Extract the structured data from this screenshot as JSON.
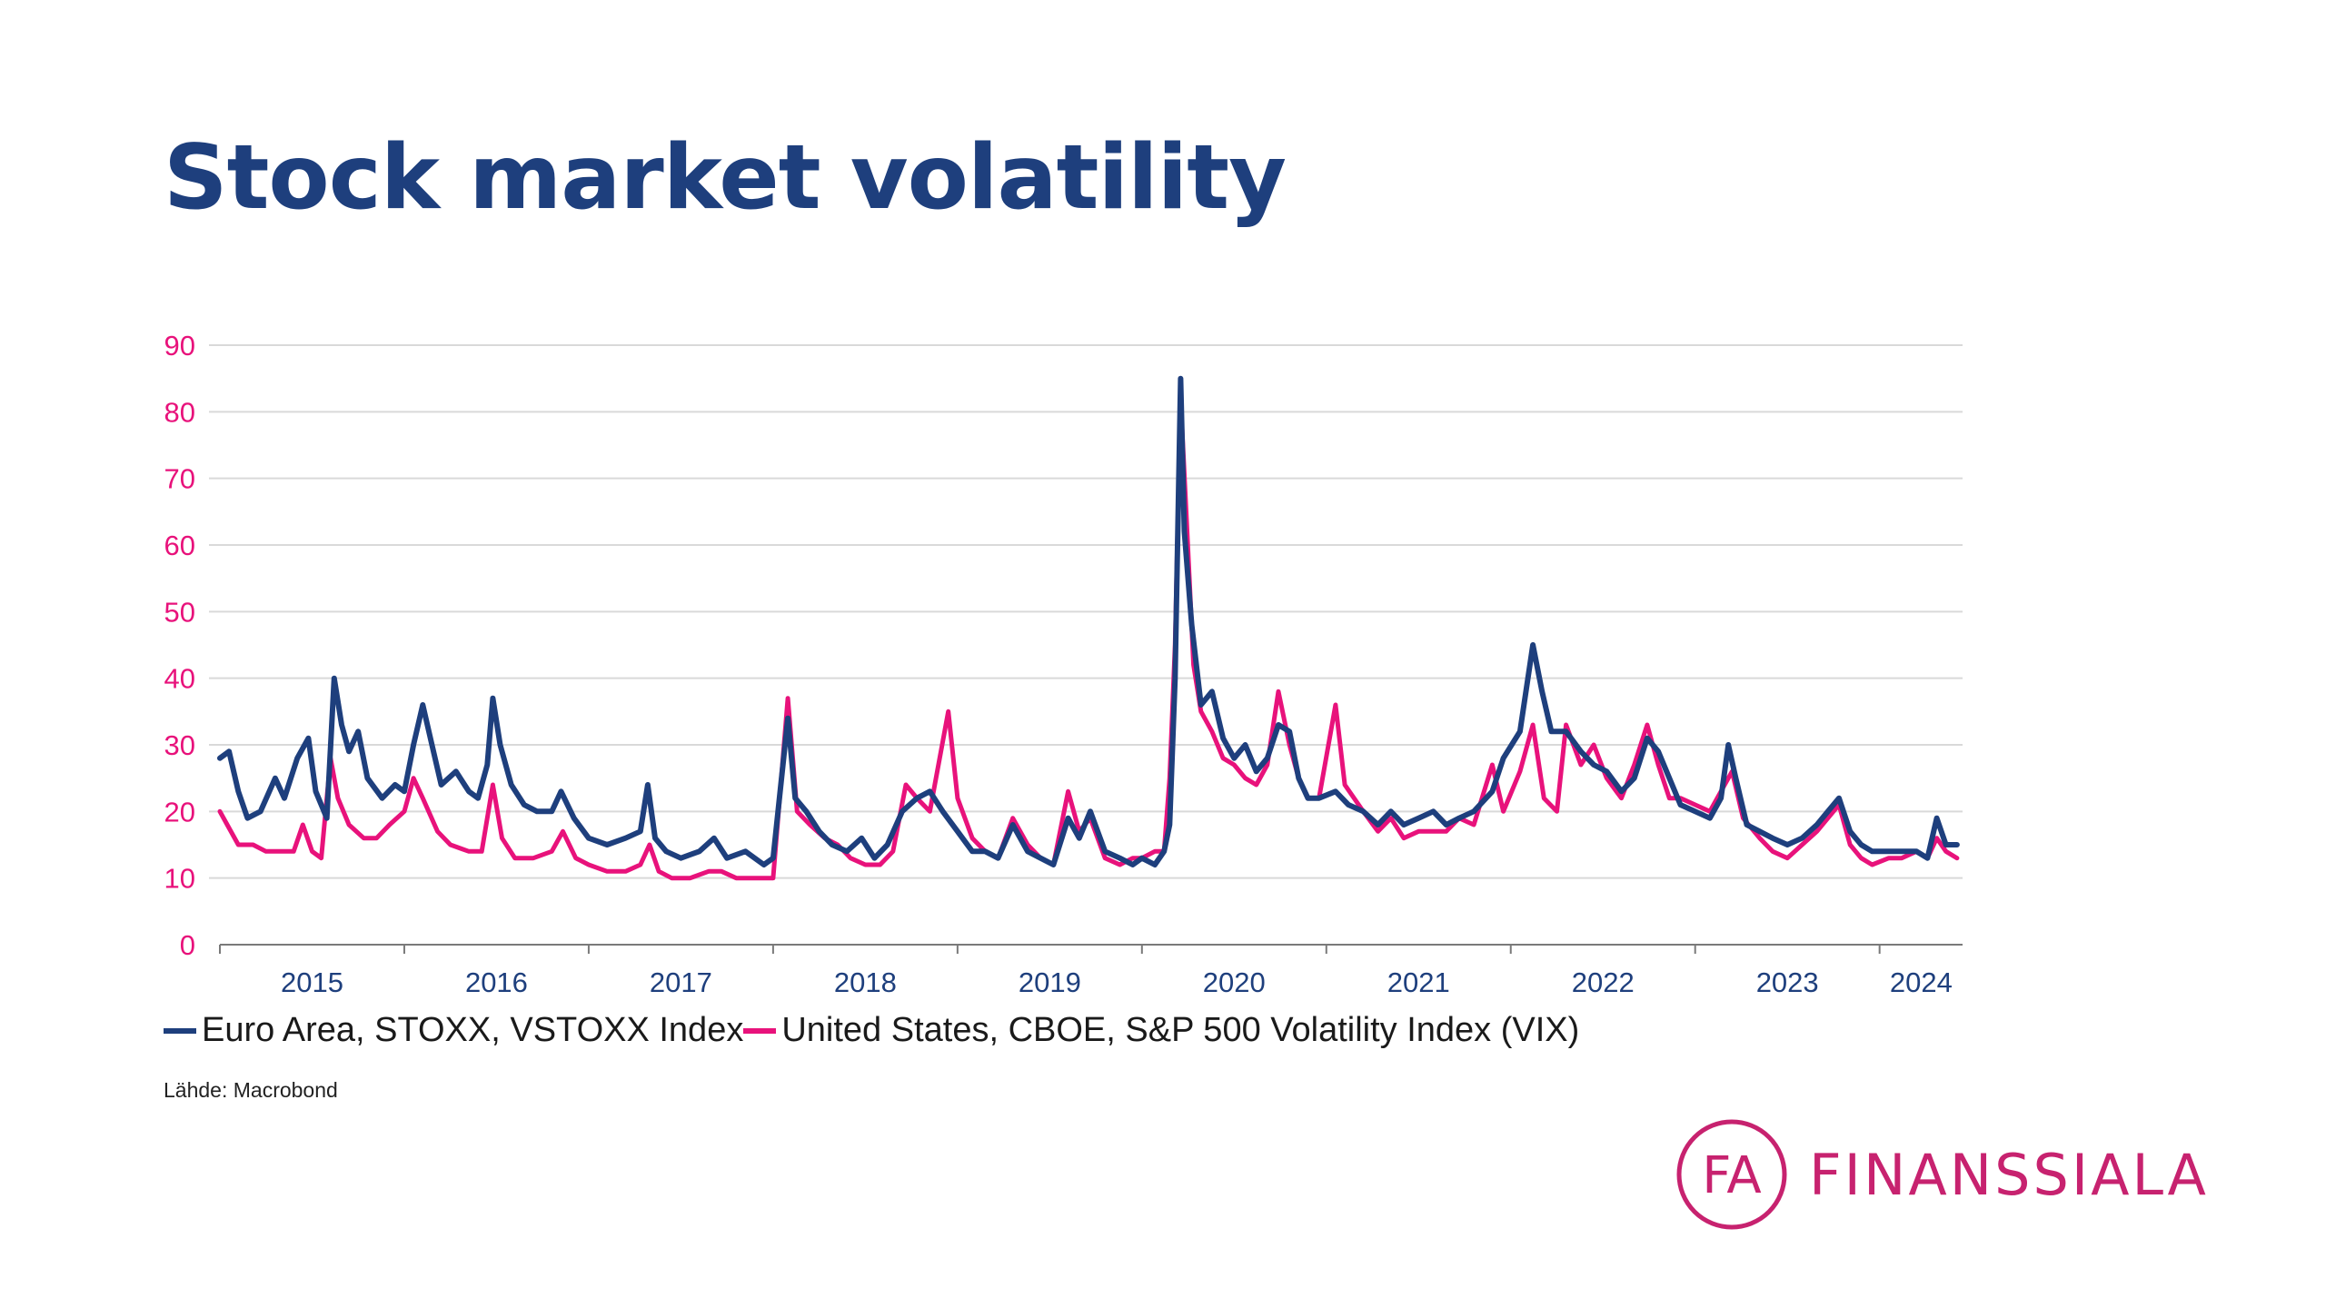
{
  "title": "Stock market volatility",
  "legend": {
    "items": [
      {
        "label": "Euro Area, STOXX, VSTOXX Index",
        "color": "#1e3f7d"
      },
      {
        "label": "United States, CBOE, S&P 500 Volatility Index (VIX)",
        "color": "#e8127b"
      }
    ]
  },
  "source": "Lähde: Macrobond",
  "logo": {
    "mark": "FA",
    "text": "FINANSSIALA",
    "color": "#c7226f"
  },
  "colors": {
    "vstoxx": "#1e3f7d",
    "vix": "#e8127b",
    "grid": "#d9d9d9",
    "ytick": "#e8127b",
    "xtick": "#1e3f7d"
  },
  "chart_data": {
    "type": "line",
    "title": "Stock market volatility",
    "xlabel": "",
    "ylabel": "",
    "xlim": [
      2015.0,
      2024.45
    ],
    "ylim": [
      0,
      90
    ],
    "yticks": [
      0,
      10,
      20,
      30,
      40,
      50,
      60,
      70,
      80,
      90
    ],
    "x_tick_labels": [
      "2015",
      "2016",
      "2017",
      "2018",
      "2019",
      "2020",
      "2021",
      "2022",
      "2023",
      "2024"
    ],
    "grid": true,
    "legend_position": "bottom",
    "series": [
      {
        "name": "Euro Area, STOXX, VSTOXX Index",
        "color": "#1e3f7d",
        "points": [
          [
            2015.0,
            28
          ],
          [
            2015.05,
            29
          ],
          [
            2015.1,
            23
          ],
          [
            2015.15,
            19
          ],
          [
            2015.22,
            20
          ],
          [
            2015.3,
            25
          ],
          [
            2015.35,
            22
          ],
          [
            2015.42,
            28
          ],
          [
            2015.48,
            31
          ],
          [
            2015.52,
            23
          ],
          [
            2015.58,
            19
          ],
          [
            2015.62,
            40
          ],
          [
            2015.66,
            33
          ],
          [
            2015.7,
            29
          ],
          [
            2015.75,
            32
          ],
          [
            2015.8,
            25
          ],
          [
            2015.88,
            22
          ],
          [
            2015.95,
            24
          ],
          [
            2016.0,
            23
          ],
          [
            2016.05,
            30
          ],
          [
            2016.1,
            36
          ],
          [
            2016.15,
            30
          ],
          [
            2016.2,
            24
          ],
          [
            2016.28,
            26
          ],
          [
            2016.35,
            23
          ],
          [
            2016.4,
            22
          ],
          [
            2016.45,
            27
          ],
          [
            2016.48,
            37
          ],
          [
            2016.52,
            30
          ],
          [
            2016.58,
            24
          ],
          [
            2016.65,
            21
          ],
          [
            2016.72,
            20
          ],
          [
            2016.8,
            20
          ],
          [
            2016.85,
            23
          ],
          [
            2016.92,
            19
          ],
          [
            2017.0,
            16
          ],
          [
            2017.1,
            15
          ],
          [
            2017.2,
            16
          ],
          [
            2017.28,
            17
          ],
          [
            2017.32,
            24
          ],
          [
            2017.36,
            16
          ],
          [
            2017.42,
            14
          ],
          [
            2017.5,
            13
          ],
          [
            2017.6,
            14
          ],
          [
            2017.68,
            16
          ],
          [
            2017.75,
            13
          ],
          [
            2017.85,
            14
          ],
          [
            2017.95,
            12
          ],
          [
            2018.0,
            13
          ],
          [
            2018.08,
            34
          ],
          [
            2018.12,
            22
          ],
          [
            2018.18,
            20
          ],
          [
            2018.25,
            17
          ],
          [
            2018.32,
            15
          ],
          [
            2018.4,
            14
          ],
          [
            2018.48,
            16
          ],
          [
            2018.55,
            13
          ],
          [
            2018.62,
            15
          ],
          [
            2018.7,
            20
          ],
          [
            2018.78,
            22
          ],
          [
            2018.85,
            23
          ],
          [
            2018.92,
            20
          ],
          [
            2019.0,
            17
          ],
          [
            2019.08,
            14
          ],
          [
            2019.15,
            14
          ],
          [
            2019.22,
            13
          ],
          [
            2019.3,
            18
          ],
          [
            2019.38,
            14
          ],
          [
            2019.45,
            13
          ],
          [
            2019.52,
            12
          ],
          [
            2019.6,
            19
          ],
          [
            2019.66,
            16
          ],
          [
            2019.72,
            20
          ],
          [
            2019.8,
            14
          ],
          [
            2019.88,
            13
          ],
          [
            2019.95,
            12
          ],
          [
            2020.0,
            13
          ],
          [
            2020.07,
            12
          ],
          [
            2020.12,
            14
          ],
          [
            2020.15,
            18
          ],
          [
            2020.18,
            40
          ],
          [
            2020.21,
            85
          ],
          [
            2020.23,
            62
          ],
          [
            2020.27,
            48
          ],
          [
            2020.32,
            36
          ],
          [
            2020.38,
            38
          ],
          [
            2020.44,
            31
          ],
          [
            2020.5,
            28
          ],
          [
            2020.56,
            30
          ],
          [
            2020.62,
            26
          ],
          [
            2020.68,
            28
          ],
          [
            2020.74,
            33
          ],
          [
            2020.8,
            32
          ],
          [
            2020.85,
            25
          ],
          [
            2020.9,
            22
          ],
          [
            2020.96,
            22
          ],
          [
            2021.05,
            23
          ],
          [
            2021.12,
            21
          ],
          [
            2021.2,
            20
          ],
          [
            2021.28,
            18
          ],
          [
            2021.35,
            20
          ],
          [
            2021.42,
            18
          ],
          [
            2021.5,
            19
          ],
          [
            2021.58,
            20
          ],
          [
            2021.65,
            18
          ],
          [
            2021.72,
            19
          ],
          [
            2021.8,
            20
          ],
          [
            2021.9,
            23
          ],
          [
            2021.96,
            28
          ],
          [
            2022.05,
            32
          ],
          [
            2022.12,
            45
          ],
          [
            2022.17,
            38
          ],
          [
            2022.22,
            32
          ],
          [
            2022.3,
            32
          ],
          [
            2022.38,
            29
          ],
          [
            2022.45,
            27
          ],
          [
            2022.52,
            26
          ],
          [
            2022.6,
            23
          ],
          [
            2022.67,
            25
          ],
          [
            2022.74,
            31
          ],
          [
            2022.8,
            29
          ],
          [
            2022.86,
            25
          ],
          [
            2022.92,
            21
          ],
          [
            2023.0,
            20
          ],
          [
            2023.08,
            19
          ],
          [
            2023.14,
            22
          ],
          [
            2023.18,
            30
          ],
          [
            2023.22,
            25
          ],
          [
            2023.28,
            18
          ],
          [
            2023.35,
            17
          ],
          [
            2023.42,
            16
          ],
          [
            2023.5,
            15
          ],
          [
            2023.58,
            16
          ],
          [
            2023.66,
            18
          ],
          [
            2023.72,
            20
          ],
          [
            2023.78,
            22
          ],
          [
            2023.84,
            17
          ],
          [
            2023.9,
            15
          ],
          [
            2023.96,
            14
          ],
          [
            2024.05,
            14
          ],
          [
            2024.12,
            14
          ],
          [
            2024.2,
            14
          ],
          [
            2024.26,
            13
          ],
          [
            2024.31,
            19
          ],
          [
            2024.36,
            15
          ],
          [
            2024.42,
            15
          ]
        ]
      },
      {
        "name": "United States, CBOE, S&P 500 Volatility Index (VIX)",
        "color": "#e8127b",
        "points": [
          [
            2015.0,
            20
          ],
          [
            2015.04,
            18
          ],
          [
            2015.1,
            15
          ],
          [
            2015.18,
            15
          ],
          [
            2015.25,
            14
          ],
          [
            2015.32,
            14
          ],
          [
            2015.4,
            14
          ],
          [
            2015.45,
            18
          ],
          [
            2015.5,
            14
          ],
          [
            2015.55,
            13
          ],
          [
            2015.6,
            28
          ],
          [
            2015.64,
            22
          ],
          [
            2015.7,
            18
          ],
          [
            2015.78,
            16
          ],
          [
            2015.85,
            16
          ],
          [
            2015.92,
            18
          ],
          [
            2016.0,
            20
          ],
          [
            2016.05,
            25
          ],
          [
            2016.1,
            22
          ],
          [
            2016.18,
            17
          ],
          [
            2016.25,
            15
          ],
          [
            2016.35,
            14
          ],
          [
            2016.42,
            14
          ],
          [
            2016.48,
            24
          ],
          [
            2016.53,
            16
          ],
          [
            2016.6,
            13
          ],
          [
            2016.7,
            13
          ],
          [
            2016.8,
            14
          ],
          [
            2016.86,
            17
          ],
          [
            2016.93,
            13
          ],
          [
            2017.0,
            12
          ],
          [
            2017.1,
            11
          ],
          [
            2017.2,
            11
          ],
          [
            2017.28,
            12
          ],
          [
            2017.33,
            15
          ],
          [
            2017.38,
            11
          ],
          [
            2017.45,
            10
          ],
          [
            2017.55,
            10
          ],
          [
            2017.65,
            11
          ],
          [
            2017.72,
            11
          ],
          [
            2017.8,
            10
          ],
          [
            2017.9,
            10
          ],
          [
            2018.0,
            10
          ],
          [
            2018.08,
            37
          ],
          [
            2018.13,
            20
          ],
          [
            2018.2,
            18
          ],
          [
            2018.28,
            16
          ],
          [
            2018.35,
            15
          ],
          [
            2018.42,
            13
          ],
          [
            2018.5,
            12
          ],
          [
            2018.58,
            12
          ],
          [
            2018.65,
            14
          ],
          [
            2018.72,
            24
          ],
          [
            2018.78,
            22
          ],
          [
            2018.85,
            20
          ],
          [
            2018.95,
            35
          ],
          [
            2019.0,
            22
          ],
          [
            2019.08,
            16
          ],
          [
            2019.15,
            14
          ],
          [
            2019.22,
            13
          ],
          [
            2019.3,
            19
          ],
          [
            2019.38,
            15
          ],
          [
            2019.45,
            13
          ],
          [
            2019.52,
            12
          ],
          [
            2019.6,
            23
          ],
          [
            2019.66,
            17
          ],
          [
            2019.72,
            19
          ],
          [
            2019.8,
            13
          ],
          [
            2019.88,
            12
          ],
          [
            2019.95,
            13
          ],
          [
            2020.0,
            13
          ],
          [
            2020.07,
            14
          ],
          [
            2020.12,
            14
          ],
          [
            2020.15,
            25
          ],
          [
            2020.18,
            45
          ],
          [
            2020.21,
            82
          ],
          [
            2020.24,
            65
          ],
          [
            2020.28,
            42
          ],
          [
            2020.32,
            35
          ],
          [
            2020.38,
            32
          ],
          [
            2020.44,
            28
          ],
          [
            2020.5,
            27
          ],
          [
            2020.56,
            25
          ],
          [
            2020.62,
            24
          ],
          [
            2020.68,
            27
          ],
          [
            2020.74,
            38
          ],
          [
            2020.8,
            30
          ],
          [
            2020.85,
            25
          ],
          [
            2020.9,
            22
          ],
          [
            2020.96,
            22
          ],
          [
            2021.05,
            36
          ],
          [
            2021.1,
            24
          ],
          [
            2021.2,
            20
          ],
          [
            2021.28,
            17
          ],
          [
            2021.35,
            19
          ],
          [
            2021.42,
            16
          ],
          [
            2021.5,
            17
          ],
          [
            2021.58,
            17
          ],
          [
            2021.65,
            17
          ],
          [
            2021.72,
            19
          ],
          [
            2021.8,
            18
          ],
          [
            2021.9,
            27
          ],
          [
            2021.96,
            20
          ],
          [
            2022.05,
            26
          ],
          [
            2022.12,
            33
          ],
          [
            2022.18,
            22
          ],
          [
            2022.25,
            20
          ],
          [
            2022.3,
            33
          ],
          [
            2022.38,
            27
          ],
          [
            2022.45,
            30
          ],
          [
            2022.52,
            25
          ],
          [
            2022.6,
            22
          ],
          [
            2022.67,
            27
          ],
          [
            2022.74,
            33
          ],
          [
            2022.8,
            27
          ],
          [
            2022.86,
            22
          ],
          [
            2022.92,
            22
          ],
          [
            2023.0,
            21
          ],
          [
            2023.08,
            20
          ],
          [
            2023.14,
            23
          ],
          [
            2023.2,
            26
          ],
          [
            2023.26,
            19
          ],
          [
            2023.35,
            16
          ],
          [
            2023.42,
            14
          ],
          [
            2023.5,
            13
          ],
          [
            2023.58,
            15
          ],
          [
            2023.66,
            17
          ],
          [
            2023.72,
            19
          ],
          [
            2023.78,
            21
          ],
          [
            2023.84,
            15
          ],
          [
            2023.9,
            13
          ],
          [
            2023.96,
            12
          ],
          [
            2024.05,
            13
          ],
          [
            2024.12,
            13
          ],
          [
            2024.2,
            14
          ],
          [
            2024.26,
            13
          ],
          [
            2024.31,
            16
          ],
          [
            2024.36,
            14
          ],
          [
            2024.42,
            13
          ]
        ]
      }
    ]
  }
}
